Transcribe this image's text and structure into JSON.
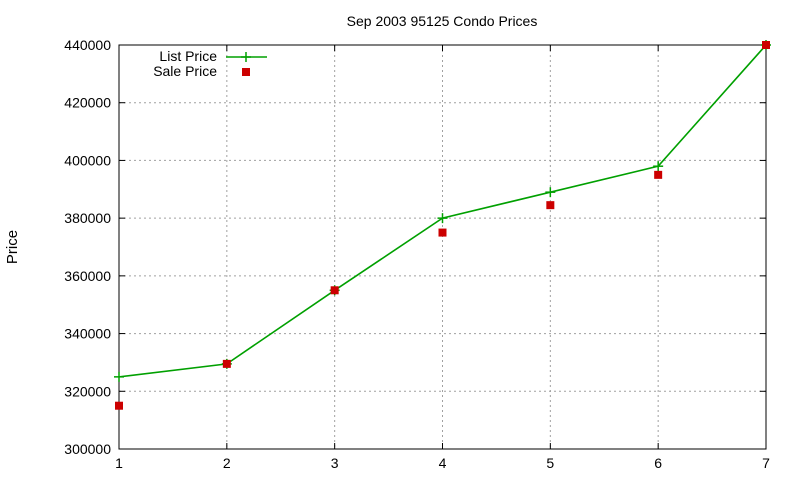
{
  "chart_data": {
    "type": "line",
    "title": "Sep 2003 95125 Condo Prices",
    "xlabel": "",
    "ylabel": "Price",
    "x": [
      1,
      2,
      3,
      4,
      5,
      6,
      7
    ],
    "xlim": [
      1,
      7
    ],
    "ylim": [
      300000,
      440000
    ],
    "xticks": [
      1,
      2,
      3,
      4,
      5,
      6,
      7
    ],
    "yticks": [
      300000,
      320000,
      340000,
      360000,
      380000,
      400000,
      420000,
      440000
    ],
    "grid": true,
    "legend_position": "top-left",
    "series": [
      {
        "name": "List Price",
        "style": "line-with-plus-markers",
        "color": "#00a000",
        "values": [
          325000,
          329500,
          355000,
          380000,
          389000,
          398000,
          440000
        ]
      },
      {
        "name": "Sale Price",
        "style": "square-points",
        "color": "#cc0000",
        "values": [
          315000,
          329500,
          355000,
          375000,
          384500,
          395000,
          440000
        ]
      }
    ]
  }
}
